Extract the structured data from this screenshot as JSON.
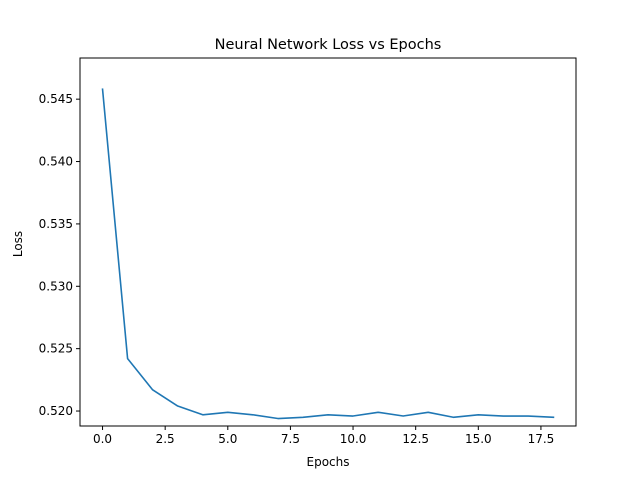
{
  "chart_data": {
    "type": "line",
    "title": "Neural Network Loss vs Epochs",
    "xlabel": "Epochs",
    "ylabel": "Loss",
    "xlim": [
      -0.9,
      18.9
    ],
    "ylim": [
      0.5188,
      0.5483
    ],
    "xticks": [
      0.0,
      2.5,
      5.0,
      7.5,
      10.0,
      12.5,
      15.0,
      17.5
    ],
    "xtick_labels": [
      "0.0",
      "2.5",
      "5.0",
      "7.5",
      "10.0",
      "12.5",
      "15.0",
      "17.5"
    ],
    "yticks": [
      0.52,
      0.525,
      0.53,
      0.535,
      0.54,
      0.545
    ],
    "ytick_labels": [
      "0.520",
      "0.525",
      "0.530",
      "0.535",
      "0.540",
      "0.545"
    ],
    "grid": false,
    "series": [
      {
        "name": "Loss",
        "color": "#1f77b4",
        "x": [
          0,
          1,
          2,
          3,
          4,
          5,
          6,
          7,
          8,
          9,
          10,
          11,
          12,
          13,
          14,
          15,
          16,
          17,
          18
        ],
        "values": [
          0.5458,
          0.5242,
          0.5217,
          0.5204,
          0.5197,
          0.5199,
          0.5197,
          0.5194,
          0.5195,
          0.5197,
          0.5196,
          0.5199,
          0.5196,
          0.5199,
          0.5195,
          0.5197,
          0.5196,
          0.5196,
          0.5195
        ]
      }
    ]
  }
}
